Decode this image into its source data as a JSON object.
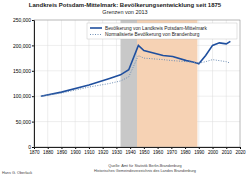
{
  "chart_data": {
    "type": "line",
    "title": "Landkreis Potsdam-Mittelmark: Bevölkerungsentwicklung seit 1875",
    "subtitle": "Grenzen von 2013",
    "x": [
      1875,
      1890,
      1910,
      1925,
      1933,
      1939,
      1946,
      1950,
      1964,
      1971,
      1981,
      1985,
      1989,
      1990,
      1995,
      2000,
      2005,
      2010,
      2013
    ],
    "series": [
      {
        "name": "Bevölkerung von Landkreis Potsdam-Mittelmark",
        "color": "#1f4f9e",
        "line_style": "solid",
        "values": [
          100000,
          108000,
          122000,
          135000,
          142000,
          152000,
          200000,
          190000,
          180000,
          178000,
          170000,
          168000,
          165000,
          164000,
          180000,
          200000,
          205000,
          203000,
          208000
        ]
      },
      {
        "name": "Normalisierte Bevölkerung von Brandenburg",
        "color": "#6f8fb5",
        "line_style": "dotted",
        "values": [
          100000,
          106000,
          118000,
          125000,
          130000,
          138000,
          180000,
          175000,
          172000,
          170000,
          168000,
          167000,
          166000,
          165000,
          168000,
          172000,
          170000,
          168000,
          165000
        ]
      }
    ],
    "periods": [
      {
        "from": 1933,
        "to": 1945,
        "color": "#c8c8c8"
      },
      {
        "from": 1945,
        "to": 1989,
        "color": "#f6d2b4"
      }
    ],
    "xlim": [
      1870,
      2020
    ],
    "xticks": [
      1870,
      1880,
      1890,
      1900,
      1910,
      1920,
      1930,
      1940,
      1950,
      1960,
      1970,
      1980,
      1990,
      2000,
      2010,
      2020
    ],
    "ylim": [
      0,
      250000
    ],
    "yticks": [
      0,
      {
        "value": 50000,
        "label": "50,000"
      },
      {
        "value": 100000,
        "label": "100,000"
      },
      {
        "value": 150000,
        "label": "150,000"
      },
      {
        "value": 200000,
        "label": "200,000"
      },
      {
        "value": 250000,
        "label": "250,000"
      }
    ],
    "grid": true,
    "legend": "top-right",
    "source": [
      "Quelle: Amt für Statistik Berlin-Brandenburg",
      "Historisches Gemeindeverzeichnis des Landes Brandenburg"
    ],
    "author": "Hans G. Oberlack"
  }
}
